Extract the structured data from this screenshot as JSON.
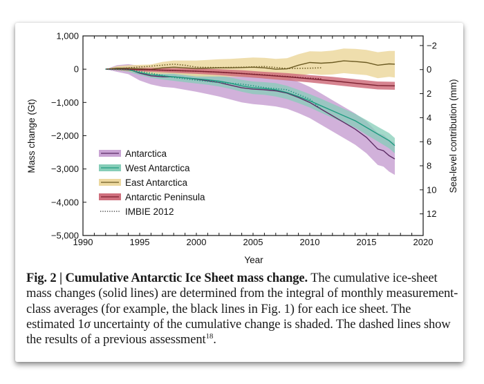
{
  "chart_data": {
    "type": "line",
    "title": "",
    "xlabel": "Year",
    "ylabel": "Mass change (Gt)",
    "y2label": "Sea-level contribution (mm)",
    "xlim": [
      1990,
      2020
    ],
    "ylim": [
      -5000,
      1000
    ],
    "y2lim": [
      13.8,
      -2.8
    ],
    "xticks": [
      "1990",
      "1995",
      "2000",
      "2005",
      "2010",
      "2015",
      "2020"
    ],
    "yticks": [
      "1,000",
      "0",
      "−1,000",
      "−2,000",
      "−3,000",
      "−4,000",
      "−5,000"
    ],
    "y2ticks": [
      "−2",
      "0",
      "2",
      "4",
      "6",
      "8",
      "10",
      "12"
    ],
    "legend_position": "bottom-left",
    "series": [
      {
        "name": "Antarctica",
        "line_color": "#5b2a63",
        "band_color": "#c9a3d4",
        "x": [
          1992,
          1993,
          1994,
          1995,
          1996,
          1997,
          1998,
          1999,
          2000,
          2001,
          2002,
          2003,
          2004,
          2005,
          2006,
          2007,
          2008,
          2009,
          2010,
          2011,
          2012,
          2013,
          2014,
          2015,
          2016,
          2016.5,
          2017,
          2017.5
        ],
        "y": [
          0,
          20,
          0,
          -120,
          -200,
          -230,
          -230,
          -260,
          -300,
          -350,
          -400,
          -480,
          -560,
          -600,
          -620,
          -650,
          -720,
          -850,
          -1000,
          -1200,
          -1400,
          -1600,
          -1800,
          -2050,
          -2400,
          -2450,
          -2600,
          -2700
        ],
        "band": [
          0,
          100,
          150,
          220,
          260,
          300,
          330,
          360,
          380,
          400,
          420,
          430,
          440,
          450,
          460,
          470,
          470,
          470,
          470,
          470,
          470,
          470,
          470,
          480,
          480,
          480,
          480,
          480
        ]
      },
      {
        "name": "West Antarctica",
        "line_color": "#1f9b80",
        "band_color": "#86cdb8",
        "x": [
          1992,
          1993,
          1994,
          1995,
          1996,
          1997,
          1998,
          1999,
          2000,
          2001,
          2002,
          2003,
          2004,
          2005,
          2006,
          2007,
          2008,
          2009,
          2010,
          2011,
          2012,
          2013,
          2014,
          2015,
          2016,
          2017,
          2017.5
        ],
        "y": [
          0,
          10,
          -20,
          -100,
          -160,
          -200,
          -230,
          -260,
          -290,
          -320,
          -360,
          -420,
          -500,
          -560,
          -580,
          -620,
          -700,
          -820,
          -950,
          -1100,
          -1250,
          -1400,
          -1550,
          -1750,
          -1950,
          -2150,
          -2300
        ],
        "band": [
          0,
          40,
          60,
          80,
          100,
          110,
          120,
          130,
          140,
          150,
          160,
          170,
          180,
          190,
          190,
          200,
          200,
          200,
          200,
          210,
          210,
          210,
          210,
          220,
          220,
          230,
          230
        ]
      },
      {
        "name": "East Antarctica",
        "line_color": "#6b5a22",
        "band_color": "#ecd89f",
        "x": [
          1992,
          1993,
          1994,
          1995,
          1996,
          1997,
          1998,
          1999,
          2000,
          2001,
          2002,
          2003,
          2004,
          2005,
          2006,
          2007,
          2008,
          2009,
          2010,
          2011,
          2012,
          2013,
          2014,
          2015,
          2016,
          2017,
          2017.5
        ],
        "y": [
          0,
          30,
          30,
          10,
          -10,
          40,
          60,
          40,
          20,
          30,
          40,
          40,
          50,
          60,
          40,
          0,
          10,
          120,
          200,
          180,
          200,
          250,
          230,
          200,
          120,
          160,
          150
        ],
        "band": [
          0,
          60,
          90,
          120,
          150,
          180,
          200,
          220,
          240,
          250,
          260,
          270,
          280,
          290,
          300,
          310,
          320,
          330,
          340,
          350,
          360,
          370,
          380,
          380,
          390,
          390,
          400
        ]
      },
      {
        "name": "Antarctic Peninsula",
        "line_color": "#7a1f2e",
        "band_color": "#cf6f7d",
        "x": [
          1992,
          1994,
          1996,
          1998,
          2000,
          2002,
          2004,
          2006,
          2008,
          2010,
          2012,
          2014,
          2016,
          2017.5
        ],
        "y": [
          0,
          -10,
          -20,
          -40,
          -60,
          -90,
          -130,
          -180,
          -230,
          -290,
          -350,
          -420,
          -490,
          -500
        ],
        "band": [
          0,
          40,
          60,
          70,
          80,
          90,
          100,
          100,
          110,
          110,
          120,
          120,
          120,
          120
        ]
      },
      {
        "name": "IMBIE 2012",
        "style": "dotted",
        "line_color": "#222222",
        "sub_series": [
          {
            "region": "East Antarctica",
            "color": "#6b5a22",
            "x": [
              1992,
              1994,
              1996,
              1998,
              1999,
              2000,
              2002,
              2004,
              2006,
              2008,
              2010,
              2011
            ],
            "y": [
              0,
              40,
              90,
              150,
              120,
              60,
              50,
              60,
              80,
              20,
              30,
              40
            ]
          },
          {
            "region": "Antarctic Peninsula",
            "color": "#7a1f2e",
            "x": [
              1992,
              1994,
              1996,
              1998,
              2000,
              2002,
              2004,
              2006,
              2008,
              2010,
              2011
            ],
            "y": [
              0,
              -10,
              -20,
              -40,
              -60,
              -90,
              -130,
              -170,
              -220,
              -270,
              -290
            ]
          },
          {
            "region": "West Antarctica",
            "color": "#1f9b80",
            "x": [
              1992,
              1994,
              1996,
              1998,
              2000,
              2002,
              2004,
              2006,
              2008,
              2010,
              2011
            ],
            "y": [
              0,
              -20,
              -120,
              -250,
              -330,
              -400,
              -450,
              -550,
              -620,
              -900,
              -1200
            ]
          }
        ]
      }
    ]
  },
  "caption": {
    "label": "Fig. 2 | Cumulative Antarctic Ice Sheet mass change.",
    "text_part1": " The cumulative ice-sheet mass changes (solid lines) are determined from the integral of monthly measurement-class averages (for example, the black lines in Fig. 1) for each ice sheet. The estimated 1",
    "sigma": "σ",
    "text_part2": " uncertainty of the cumulative change is shaded. The dashed lines show the results of a previous assessment",
    "reference": "18",
    "end": "."
  }
}
